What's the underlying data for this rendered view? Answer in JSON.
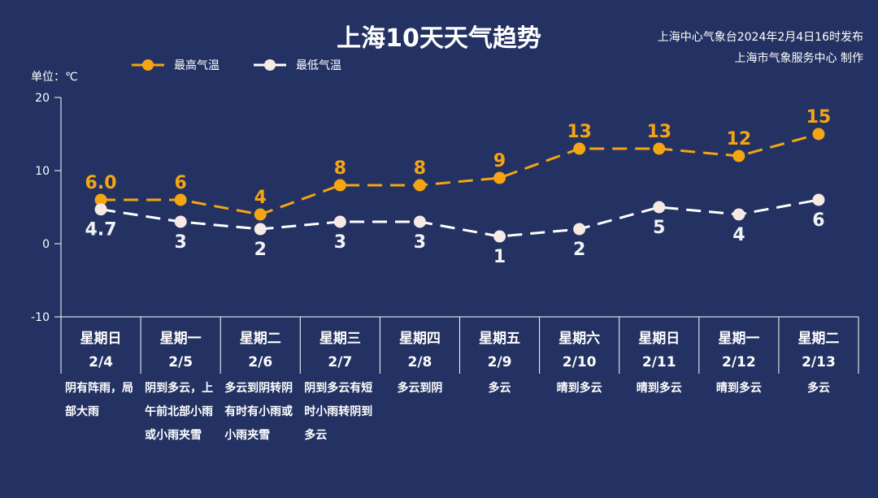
{
  "header": {
    "title": "上海10天天气趋势",
    "publisher_line1": "上海中心气象台2024年2月4日16时发布",
    "publisher_line2": "上海市气象服务中心 制作"
  },
  "chart_data": {
    "type": "line",
    "title": "上海10天天气趋势",
    "ylabel": "单位：℃",
    "ylim": [
      -10,
      20
    ],
    "yticks": [
      20,
      10,
      0,
      -10
    ],
    "grid": false,
    "legend_position": "top-left",
    "categories_weekday": [
      "星期日",
      "星期一",
      "星期二",
      "星期三",
      "星期四",
      "星期五",
      "星期六",
      "星期日",
      "星期一",
      "星期二"
    ],
    "categories_date": [
      "2/4",
      "2/5",
      "2/6",
      "2/7",
      "2/8",
      "2/9",
      "2/10",
      "2/11",
      "2/12",
      "2/13"
    ],
    "series": [
      {
        "name": "最高气温",
        "color": "#f5a511",
        "values": [
          6.0,
          6,
          4,
          8,
          8,
          9,
          13,
          13,
          12,
          15
        ],
        "labels": [
          "6.0",
          "6",
          "4",
          "8",
          "8",
          "9",
          "13",
          "13",
          "12",
          "15"
        ]
      },
      {
        "name": "最低气温",
        "color": "#ffffff",
        "values": [
          4.7,
          3,
          2,
          3,
          3,
          1,
          2,
          5,
          4,
          6
        ],
        "labels": [
          "4.7",
          "3",
          "2",
          "3",
          "3",
          "1",
          "2",
          "5",
          "4",
          "6"
        ]
      }
    ],
    "weather": [
      "阴有阵雨，局部大雨",
      "阴到多云，上午前北部小雨或小雨夹雪",
      "多云到阴转阴有时有小雨或小雨夹雪",
      "阴到多云有短时小雨转阴到多云",
      "多云到阴",
      "多云",
      "晴到多云",
      "晴到多云",
      "晴到多云",
      "多云"
    ]
  }
}
